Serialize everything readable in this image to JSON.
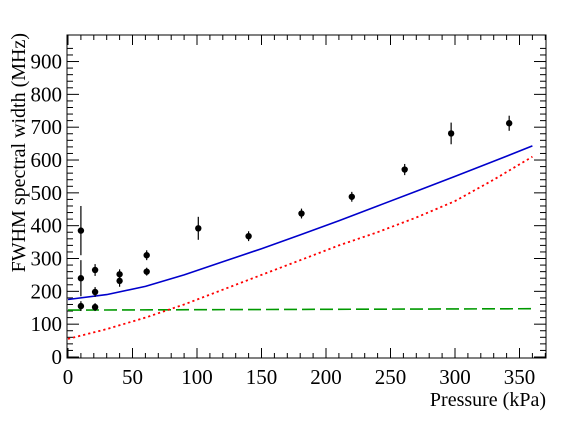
{
  "chart_data": {
    "type": "scatter",
    "title": "",
    "xlabel": "Pressure (kPa)",
    "ylabel": "FWHM spectral width (MHz)",
    "xlim": [
      0,
      375
    ],
    "ylim": [
      0,
      950
    ],
    "x_ticks": [
      0,
      50,
      100,
      150,
      200,
      250,
      300,
      350
    ],
    "y_ticks": [
      0,
      100,
      200,
      300,
      400,
      500,
      600,
      700,
      800,
      900
    ],
    "x_tick_labels": [
      "0",
      "50",
      "100",
      "150",
      "200",
      "250",
      "300",
      "350"
    ],
    "y_tick_labels": [
      "0",
      "100",
      "200",
      "300",
      "400",
      "500",
      "600",
      "700",
      "800",
      "900"
    ],
    "grid": false,
    "colors": {
      "total": "#0000cc",
      "pressure": "#ff0000",
      "constant": "#009900",
      "points": "#000000"
    },
    "series": [
      {
        "style": "markers-with-error-bars",
        "points": [
          {
            "x": 10,
            "y": 385,
            "err": 75
          },
          {
            "x": 10,
            "y": 240,
            "err": 55
          },
          {
            "x": 10,
            "y": 155,
            "err": 15
          },
          {
            "x": 21,
            "y": 265,
            "err": 18
          },
          {
            "x": 21,
            "y": 198,
            "err": 15
          },
          {
            "x": 21,
            "y": 152,
            "err": 12
          },
          {
            "x": 40,
            "y": 252,
            "err": 15
          },
          {
            "x": 40,
            "y": 232,
            "err": 18
          },
          {
            "x": 61,
            "y": 310,
            "err": 15
          },
          {
            "x": 61,
            "y": 260,
            "err": 12
          },
          {
            "x": 101,
            "y": 392,
            "err": 35
          },
          {
            "x": 140,
            "y": 368,
            "err": 15
          },
          {
            "x": 181,
            "y": 437,
            "err": 15
          },
          {
            "x": 220,
            "y": 488,
            "err": 15
          },
          {
            "x": 261,
            "y": 571,
            "err": 17
          },
          {
            "x": 297,
            "y": 681,
            "err": 33
          },
          {
            "x": 342,
            "y": 712,
            "err": 23
          }
        ]
      },
      {
        "style": "solid-line",
        "x": [
          0,
          30,
          60,
          90,
          120,
          150,
          180,
          210,
          240,
          270,
          300,
          330,
          360
        ],
        "y": [
          175,
          190,
          215,
          250,
          290,
          330,
          372,
          415,
          460,
          505,
          550,
          596,
          643
        ]
      },
      {
        "style": "dotted-line",
        "x": [
          0,
          30,
          60,
          90,
          120,
          150,
          180,
          210,
          240,
          270,
          300,
          330,
          360
        ],
        "y": [
          55,
          85,
          120,
          160,
          205,
          250,
          295,
          340,
          380,
          425,
          475,
          540,
          610
        ]
      },
      {
        "style": "dashed-line",
        "x": [
          0,
          360
        ],
        "y": [
          143,
          147
        ]
      }
    ]
  }
}
